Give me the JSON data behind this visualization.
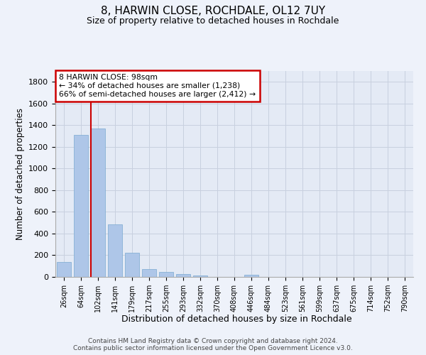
{
  "title": "8, HARWIN CLOSE, ROCHDALE, OL12 7UY",
  "subtitle": "Size of property relative to detached houses in Rochdale",
  "xlabel": "Distribution of detached houses by size in Rochdale",
  "ylabel": "Number of detached properties",
  "footer_line1": "Contains HM Land Registry data © Crown copyright and database right 2024.",
  "footer_line2": "Contains public sector information licensed under the Open Government Licence v3.0.",
  "categories": [
    "26sqm",
    "64sqm",
    "102sqm",
    "141sqm",
    "179sqm",
    "217sqm",
    "255sqm",
    "293sqm",
    "332sqm",
    "370sqm",
    "408sqm",
    "446sqm",
    "484sqm",
    "523sqm",
    "561sqm",
    "599sqm",
    "637sqm",
    "675sqm",
    "714sqm",
    "752sqm",
    "790sqm"
  ],
  "values": [
    135,
    1310,
    1370,
    485,
    225,
    75,
    45,
    28,
    15,
    0,
    0,
    20,
    0,
    0,
    0,
    0,
    0,
    0,
    0,
    0,
    0
  ],
  "bar_color": "#aec6e8",
  "bar_edge_color": "#7aaad0",
  "vline_color": "#cc0000",
  "annotation_text": "8 HARWIN CLOSE: 98sqm\n← 34% of detached houses are smaller (1,238)\n66% of semi-detached houses are larger (2,412) →",
  "annotation_box_color": "#cc0000",
  "ylim": [
    0,
    1900
  ],
  "yticks": [
    0,
    200,
    400,
    600,
    800,
    1000,
    1200,
    1400,
    1600,
    1800
  ],
  "bg_color": "#eef2fa",
  "plot_bg_color": "#e4eaf5",
  "grid_color": "#c8d0df"
}
